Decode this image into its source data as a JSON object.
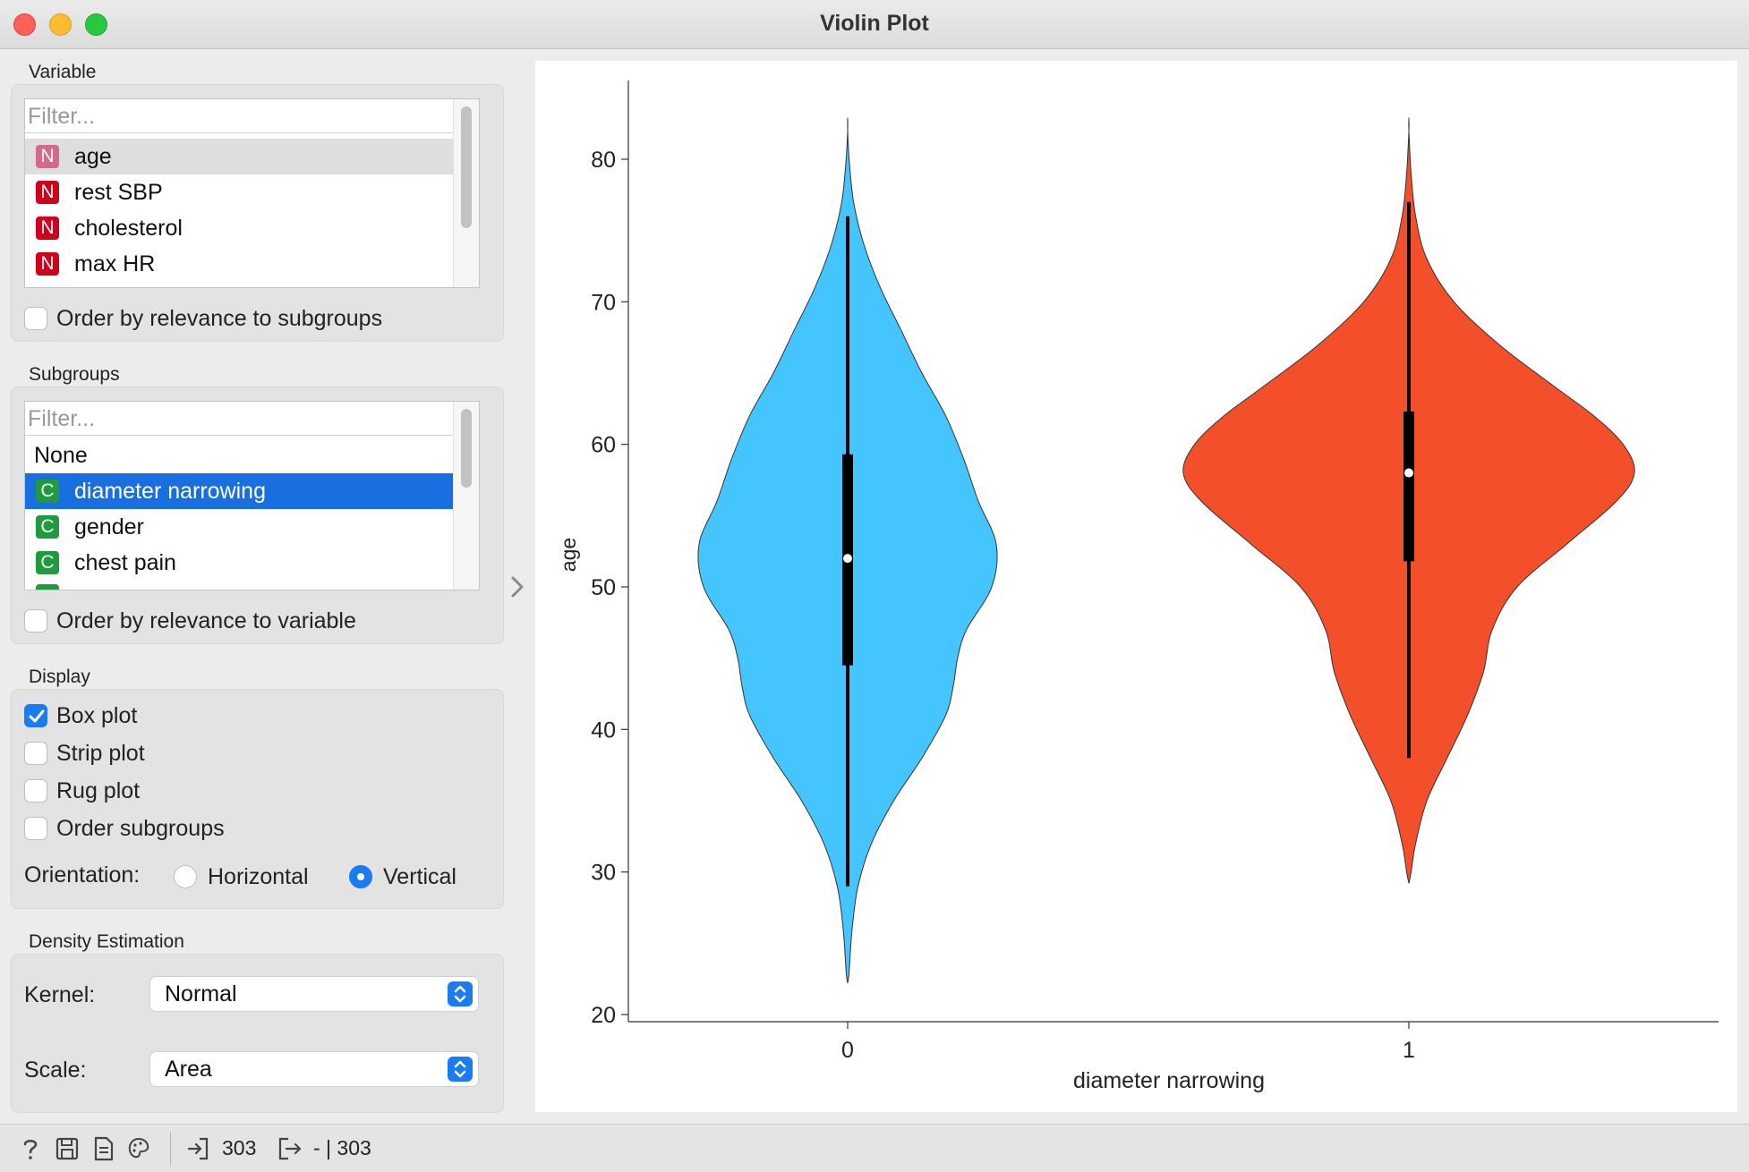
{
  "window": {
    "title": "Violin Plot"
  },
  "variable": {
    "label": "Variable",
    "filter_placeholder": "Filter...",
    "items": [
      {
        "badge": "N",
        "label": "age"
      },
      {
        "badge": "N",
        "label": "rest SBP"
      },
      {
        "badge": "N",
        "label": "cholesterol"
      },
      {
        "badge": "N",
        "label": "max HR"
      }
    ],
    "selected": "age",
    "order_label": "Order by relevance to subgroups"
  },
  "subgroups": {
    "label": "Subgroups",
    "filter_placeholder": "Filter...",
    "none_label": "None",
    "items": [
      {
        "badge": "C",
        "label": "diameter narrowing"
      },
      {
        "badge": "C",
        "label": "gender"
      },
      {
        "badge": "C",
        "label": "chest pain"
      }
    ],
    "selected": "diameter narrowing",
    "order_label": "Order by relevance to variable"
  },
  "display": {
    "label": "Display",
    "box_plot": {
      "label": "Box plot",
      "checked": true
    },
    "strip_plot": {
      "label": "Strip plot",
      "checked": false
    },
    "rug_plot": {
      "label": "Rug plot",
      "checked": false
    },
    "order_subgroups": {
      "label": "Order subgroups",
      "checked": false
    },
    "orientation_label": "Orientation:",
    "orientation_options": [
      "Horizontal",
      "Vertical"
    ],
    "orientation_selected": "Vertical"
  },
  "density": {
    "label": "Density Estimation",
    "kernel_label": "Kernel:",
    "kernel_value": "Normal",
    "scale_label": "Scale:",
    "scale_value": "Area"
  },
  "status": {
    "input_count": "303",
    "output_text": "- | 303"
  },
  "colors": {
    "group0": "#45c5fd",
    "group1": "#f34f2b",
    "accent": "#1a7cf0"
  },
  "chart_data": {
    "type": "violin",
    "title": "",
    "xlabel": "diameter narrowing",
    "ylabel": "age",
    "ylim": [
      20,
      85
    ],
    "yticks": [
      20,
      30,
      40,
      50,
      60,
      70,
      80
    ],
    "categories": [
      "0",
      "1"
    ],
    "series": [
      {
        "name": "0",
        "color": "#45c5fd",
        "min": 29,
        "q1": 44.5,
        "median": 52,
        "q3": 59.3,
        "max": 76,
        "density_top": 82.8,
        "density_bottom": 22.2,
        "density": [
          [
            23,
            0.01
          ],
          [
            26,
            0.03
          ],
          [
            29,
            0.07
          ],
          [
            32,
            0.16
          ],
          [
            35,
            0.31
          ],
          [
            38,
            0.5
          ],
          [
            41,
            0.66
          ],
          [
            43,
            0.71
          ],
          [
            45,
            0.74
          ],
          [
            47,
            0.8
          ],
          [
            50,
            0.97
          ],
          [
            53,
            1.0
          ],
          [
            56,
            0.88
          ],
          [
            59,
            0.78
          ],
          [
            62,
            0.66
          ],
          [
            65,
            0.5
          ],
          [
            68,
            0.36
          ],
          [
            71,
            0.22
          ],
          [
            74,
            0.11
          ],
          [
            77,
            0.04
          ],
          [
            80,
            0.01
          ],
          [
            82,
            0.0
          ]
        ]
      },
      {
        "name": "1",
        "color": "#f34f2b",
        "min": 38,
        "q1": 51.8,
        "median": 58,
        "q3": 62.3,
        "max": 77,
        "density_top": 82.8,
        "density_bottom": 29.2,
        "density": [
          [
            30,
            0.01
          ],
          [
            32,
            0.03
          ],
          [
            35,
            0.08
          ],
          [
            38,
            0.17
          ],
          [
            41,
            0.26
          ],
          [
            44,
            0.33
          ],
          [
            47,
            0.37
          ],
          [
            50,
            0.48
          ],
          [
            53,
            0.7
          ],
          [
            56,
            0.92
          ],
          [
            58,
            1.0
          ],
          [
            60,
            0.95
          ],
          [
            62,
            0.82
          ],
          [
            64,
            0.65
          ],
          [
            67,
            0.4
          ],
          [
            70,
            0.2
          ],
          [
            73,
            0.08
          ],
          [
            76,
            0.03
          ],
          [
            79,
            0.01
          ],
          [
            82,
            0.0
          ]
        ]
      }
    ]
  }
}
